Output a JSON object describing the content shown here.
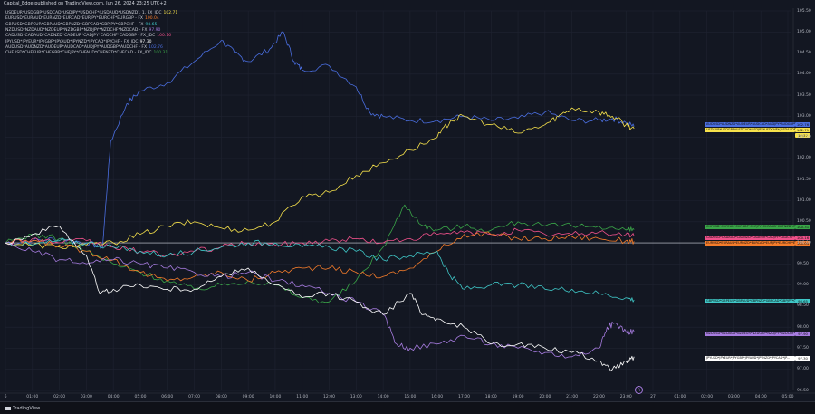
{
  "header": {
    "text": "Capital_Edge published on TradingView.com, Jun 26, 2024 23:25 UTC+2"
  },
  "legend": [
    {
      "name": "USDEUR*USDGBP*USDCAD*USDJPY*USDCHF*(USDAUD*USDNZD), 1, FX_IDC",
      "value": "102.71",
      "color": "#f7e24b"
    },
    {
      "name": "EURUSD*EURAUD*EURNZD*EURCAD*EURJPY*EURCHF*EURGBP - FX",
      "value": "100.04",
      "color": "#f57c2a"
    },
    {
      "name": "GBPUSD*GBPEUR*GBPAUD*GBPNZD*GBPCAD*GBPJPY*GBPCHF - FX",
      "value": "98.65",
      "color": "#3fc7c7"
    },
    {
      "name": "NZDUSD*NZDAUD*NZDEUR*NZDGBP*NZDJPY*NZDCHF*NZDCAD - FX",
      "value": "97.90",
      "color": "#a77ce0"
    },
    {
      "name": "CADUSD*CADAUD*CADNZD*CADEUR*CADJPY*CADCHF*CADGBP - FX_IDC",
      "value": "100.16",
      "color": "#f0518b"
    },
    {
      "name": "JPYUSD*JPYEUR*JPYGBP*JPYAUD*JPYNZD*JPYCAD*JPYCHF - FX_IDC",
      "value": "97.30",
      "color": "#ffffff"
    },
    {
      "name": "AUDUSD*AUDNZD*AUDEUR*AUDCAD*AUDJPY*AUDGBP*AUDCHF - FX",
      "value": "102.76",
      "color": "#4a6ee0"
    },
    {
      "name": "CHFUSD*CHFEUR*CHFGBP*CHFJPY*CHFAUD*CHFNZD*CHFCAD - FX_IDC",
      "value": "100.31",
      "color": "#3aa548"
    }
  ],
  "price_tags": [
    {
      "label": "AUDUSD*AUDNZD*AUDEUR*AUDCAD*AUDJPY*AUDGBP*AU...",
      "value": "102.76",
      "color": "#4a6ee0"
    },
    {
      "label": "USDEUR*USDGBP*USDCAD*USDJPY*USDCHF*(USDAUD*U...",
      "value": "102.71",
      "color": "#f7e24b"
    },
    {
      "label": "",
      "value": "10:57",
      "color": "#f7e24b"
    },
    {
      "label": "CHFUSD*CHFEUR*CHFGBP*CHFJPY*CHFAUD*CHFNZD*CH...",
      "value": "100.31",
      "color": "#3aa548"
    },
    {
      "label": "CADUSD*CADAUD*CADNZD*CADEUR*CADJPY*CADCHF*CA...",
      "value": "100.16",
      "color": "#f0518b"
    },
    {
      "label": "EURUSD*EURAUD*EURNZD*EURCAD*EURJPY*EURCHF*EU...",
      "value": "100.04",
      "color": "#f57c2a"
    },
    {
      "label": "GBPUSD*GBPEUR*GBPAUD*GBPNZD*GBPCAD*GBPJPY*GB...",
      "value": "98.65",
      "color": "#3fc7c7"
    },
    {
      "label": "NZDUSD*NZDAUD*NZDEUR*NZDGBP*NZDJPY*NZDCHF*NZ...",
      "value": "97.90",
      "color": "#a77ce0"
    },
    {
      "label": "JPYUSD*JPYEUR*JPYGBP*JPYAUD*JPYNZD*JPYCAD*JP...",
      "value": "97.30",
      "color": "#ffffff"
    }
  ],
  "footer": {
    "brand": "TradingView",
    "session_marker": "R"
  },
  "chart_data": {
    "type": "line",
    "ylim": [
      96.5,
      105.5
    ],
    "y_ticks": [
      "105.50",
      "105.00",
      "104.50",
      "104.00",
      "103.50",
      "103.00",
      "102.50",
      "102.00",
      "101.50",
      "101.00",
      "100.50",
      "100.00",
      "99.50",
      "99.00",
      "98.50",
      "98.00",
      "97.50",
      "97.00",
      "96.50"
    ],
    "x_ticks": [
      "6",
      "01:00",
      "02:00",
      "03:00",
      "04:00",
      "05:00",
      "06:00",
      "07:00",
      "08:00",
      "09:00",
      "10:00",
      "11:00",
      "12:00",
      "13:00",
      "14:00",
      "15:00",
      "16:00",
      "17:00",
      "18:00",
      "19:00",
      "20:00",
      "21:00",
      "22:00",
      "23:00",
      "27",
      "01:00",
      "02:00",
      "03:00",
      "04:00",
      "05:00"
    ],
    "x_range": [
      0,
      29
    ],
    "baseline": 100.0,
    "series": [
      {
        "name": "AUDUSD*AUDNZD*AUDEUR*AUDCAD*AUDJPY*AUDGBP*AUDCHF - FX",
        "color": "#4a6ee0",
        "x": [
          0,
          1,
          2,
          3,
          3.6,
          3.9,
          4.5,
          5,
          6,
          7,
          8,
          8.5,
          9,
          9.8,
          10.3,
          10.7,
          11,
          12,
          13,
          13.5,
          14,
          15,
          16,
          17,
          18,
          19,
          20,
          21,
          22,
          22.5,
          23,
          23.3
        ],
        "y": [
          100,
          100.05,
          100.1,
          100,
          99.9,
          102.4,
          103.3,
          103.6,
          103.8,
          104.3,
          104.8,
          104.5,
          104.3,
          104.6,
          105.0,
          104.3,
          104.1,
          104.2,
          103.7,
          103.1,
          103.0,
          102.9,
          102.9,
          103.0,
          102.9,
          102.95,
          103.1,
          102.9,
          102.9,
          102.95,
          102.85,
          102.76
        ]
      },
      {
        "name": "USDEUR*USDGBP*USDCAD*USDJPY*USDCHF*(USDAUD*USDNZD), 1, FX_IDC",
        "color": "#f7e24b",
        "x": [
          0,
          1,
          2,
          3,
          4,
          5,
          6,
          7,
          8,
          9,
          10,
          11,
          12,
          13,
          14,
          15,
          16,
          16.5,
          17,
          18,
          19,
          20,
          20.5,
          21,
          22,
          22.5,
          23,
          23.3
        ],
        "y": [
          100,
          99.95,
          99.9,
          99.95,
          100,
          100.2,
          100.4,
          100.5,
          100.35,
          100.3,
          100.5,
          101.1,
          101.2,
          101.6,
          101.9,
          102.2,
          102.5,
          102.9,
          103.0,
          102.8,
          102.6,
          102.8,
          103.0,
          103.2,
          103.1,
          103.0,
          102.8,
          102.71
        ]
      },
      {
        "name": "CHFUSD*CHFEUR*CHFGBP*CHFJPY*CHFAUD*CHFNZD*CHFCAD - FX_IDC",
        "color": "#3aa548",
        "x": [
          0,
          1,
          2,
          3,
          4,
          5,
          6,
          7,
          8,
          9,
          10,
          11,
          12,
          13,
          14,
          14.8,
          15.5,
          16,
          17,
          18,
          19,
          20,
          21,
          22,
          23,
          23.3
        ],
        "y": [
          100,
          100.2,
          100.1,
          99.8,
          99.5,
          99.3,
          99.1,
          98.9,
          99.0,
          99.1,
          99.0,
          98.7,
          98.6,
          99.1,
          99.9,
          100.9,
          100.4,
          100.3,
          100.4,
          100.3,
          100.5,
          100.4,
          100.4,
          100.4,
          100.3,
          100.31
        ]
      },
      {
        "name": "CADUSD*CADAUD*CADNZD*CADEUR*CADJPY*CADCHF*CADGBP - FX_IDC",
        "color": "#f0518b",
        "x": [
          0,
          1,
          2,
          3,
          4,
          5,
          6,
          7,
          8,
          9,
          10,
          11,
          12,
          13,
          14,
          15,
          16,
          17,
          18,
          19,
          20,
          21,
          22,
          23,
          23.3
        ],
        "y": [
          100,
          100.1,
          100.0,
          100.05,
          99.9,
          99.8,
          99.7,
          99.8,
          99.9,
          100.0,
          99.95,
          100.0,
          100.05,
          100.1,
          100.0,
          100.1,
          100.2,
          100.25,
          100.2,
          100.3,
          100.2,
          100.2,
          100.25,
          100.2,
          100.16
        ]
      },
      {
        "name": "EURUSD*EURAUD*EURNZD*EURCAD*EURJPY*EURCHF*EURGBP - FX",
        "color": "#f57c2a",
        "x": [
          0,
          1,
          2,
          3,
          4,
          5,
          6,
          7,
          8,
          9,
          10,
          11,
          12,
          13,
          14,
          15,
          16,
          17,
          18,
          19,
          20,
          21,
          22,
          23,
          23.3
        ],
        "y": [
          100,
          100.05,
          99.95,
          99.8,
          99.6,
          99.3,
          99.1,
          99.2,
          99.3,
          99.1,
          99.3,
          99.4,
          99.4,
          99.3,
          99.2,
          99.4,
          99.8,
          100.2,
          100.2,
          100.1,
          100.1,
          100.15,
          100.1,
          100.05,
          100.04
        ]
      },
      {
        "name": "GBPUSD*GBPEUR*GBPAUD*GBPNZD*GBPCAD*GBPJPY*GBPCHF - FX",
        "color": "#3fc7c7",
        "x": [
          0,
          1,
          2,
          3,
          4,
          5,
          6,
          7,
          8,
          9,
          10,
          11,
          12,
          13,
          14,
          15,
          16,
          16.5,
          17,
          18,
          19,
          20,
          21,
          22,
          23,
          23.3
        ],
        "y": [
          100,
          99.95,
          100.05,
          100.0,
          99.9,
          99.8,
          99.7,
          99.8,
          99.9,
          100.0,
          100.0,
          99.9,
          99.9,
          99.8,
          99.6,
          99.7,
          99.8,
          99.2,
          98.9,
          99.0,
          99.0,
          98.9,
          98.9,
          98.8,
          98.7,
          98.65
        ]
      },
      {
        "name": "NZDUSD*NZDAUD*NZDEUR*NZDGBP*NZDJPY*NZDCHF*NZDCAD - FX",
        "color": "#a77ce0",
        "x": [
          0,
          1,
          2,
          3,
          4,
          5,
          6,
          7,
          8,
          9,
          10,
          11,
          12,
          13,
          14,
          14.5,
          15,
          16,
          17,
          18,
          19,
          20,
          21,
          22,
          22.3,
          22.6,
          23,
          23.3
        ],
        "y": [
          100,
          99.8,
          99.6,
          99.5,
          99.6,
          99.5,
          99.4,
          99.3,
          99.2,
          99.3,
          99.1,
          99.0,
          98.8,
          98.6,
          98.3,
          97.6,
          97.5,
          97.6,
          97.8,
          97.6,
          97.5,
          97.4,
          97.3,
          97.5,
          98.0,
          98.1,
          97.9,
          97.9
        ]
      },
      {
        "name": "JPYUSD*JPYEUR*JPYGBP*JPYAUD*JPYNZD*JPYCAD*JPYCHF - FX_IDC",
        "color": "#ffffff",
        "x": [
          0,
          1,
          2,
          3,
          3.5,
          4,
          5,
          6,
          7,
          8,
          9,
          10,
          11,
          12,
          13,
          14,
          15,
          15.5,
          16,
          17,
          18,
          19,
          20,
          21,
          22,
          22.5,
          23,
          23.3
        ],
        "y": [
          100,
          100.2,
          100.4,
          99.7,
          98.8,
          98.9,
          99.0,
          98.9,
          98.9,
          99.2,
          99.4,
          99.0,
          98.7,
          98.8,
          98.6,
          98.3,
          98.8,
          98.3,
          98.2,
          98.0,
          97.6,
          97.6,
          97.5,
          97.4,
          97.2,
          97.0,
          97.2,
          97.3
        ]
      }
    ]
  }
}
